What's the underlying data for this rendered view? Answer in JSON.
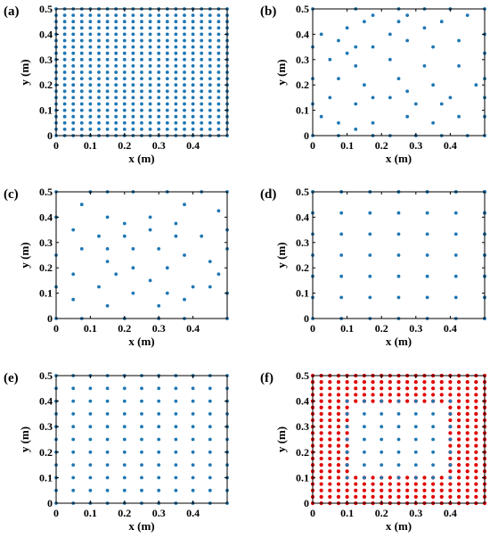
{
  "colors": {
    "blue": "#1f77b4",
    "red": "#e00000",
    "axis": "#000000"
  },
  "chart_data": [
    {
      "id": "a",
      "label": "(a)",
      "type": "scatter",
      "xlabel": "x (m)",
      "ylabel": "y (m)",
      "xlim": [
        0,
        0.5
      ],
      "ylim": [
        0,
        0.5
      ],
      "xticks": [
        0,
        0.1,
        0.2,
        0.3,
        0.4
      ],
      "yticks": [
        0,
        0.1,
        0.2,
        0.3,
        0.4,
        0.5
      ],
      "xtick_labels": [
        "0",
        "0.1",
        "0.2",
        "0.3",
        "0.4"
      ],
      "ytick_labels": [
        "0",
        "0.1",
        "0.2",
        "0.3",
        "0.4",
        "0.5"
      ],
      "grid": false,
      "series": [
        {
          "color": "#1f77b4",
          "grid_points": {
            "start": 0,
            "stop": 0.5,
            "step": 0.025
          }
        }
      ]
    },
    {
      "id": "b",
      "label": "(b)",
      "type": "scatter",
      "xlabel": "x (m)",
      "ylabel": "y (m)",
      "xlim": [
        0,
        0.5
      ],
      "ylim": [
        0,
        0.5
      ],
      "xticks": [
        0,
        0.1,
        0.2,
        0.3,
        0.4
      ],
      "yticks": [
        0,
        0.1,
        0.2,
        0.3,
        0.4,
        0.5
      ],
      "xtick_labels": [
        "0",
        "0.1",
        "0.2",
        "0.3",
        "0.4"
      ],
      "ytick_labels": [
        "0",
        "0.1",
        "0.2",
        "0.3",
        "0.4",
        "0.5"
      ],
      "grid": false,
      "series": [
        {
          "color": "#1f77b4",
          "points": [
            [
              0,
              0
            ],
            [
              0.075,
              0
            ],
            [
              0.175,
              0
            ],
            [
              0.225,
              0
            ],
            [
              0.3,
              0
            ],
            [
              0.375,
              0
            ],
            [
              0.45,
              0
            ],
            [
              0.5,
              0
            ],
            [
              0.025,
              0.075
            ],
            [
              0.075,
              0.05
            ],
            [
              0.125,
              0.025
            ],
            [
              0.175,
              0.05
            ],
            [
              0.275,
              0.075
            ],
            [
              0.35,
              0.05
            ],
            [
              0.425,
              0.075
            ],
            [
              0.05,
              0.15
            ],
            [
              0.125,
              0.125
            ],
            [
              0.175,
              0.15
            ],
            [
              0.225,
              0.15
            ],
            [
              0.3,
              0.125
            ],
            [
              0.375,
              0.125
            ],
            [
              0,
              0.225
            ],
            [
              0.075,
              0.225
            ],
            [
              0.15,
              0.2
            ],
            [
              0.275,
              0.175
            ],
            [
              0.35,
              0.2
            ],
            [
              0.4,
              0.15
            ],
            [
              0.5,
              0.225
            ],
            [
              0.05,
              0.3
            ],
            [
              0.125,
              0.275
            ],
            [
              0.225,
              0.3
            ],
            [
              0.25,
              0.225
            ],
            [
              0.325,
              0.275
            ],
            [
              0.425,
              0.275
            ],
            [
              0.475,
              0.2
            ],
            [
              0.1,
              0.325
            ],
            [
              0.175,
              0.35
            ],
            [
              0.275,
              0.375
            ],
            [
              0.35,
              0.35
            ],
            [
              0.425,
              0.375
            ],
            [
              0.5,
              0.325
            ],
            [
              0.025,
              0.4
            ],
            [
              0.075,
              0.375
            ],
            [
              0.125,
              0.35
            ],
            [
              0.225,
              0.4
            ],
            [
              0.325,
              0.425
            ],
            [
              0.1,
              0.425
            ],
            [
              0.15,
              0.45
            ],
            [
              0.25,
              0.45
            ],
            [
              0.375,
              0.45
            ],
            [
              0.175,
              0.475
            ],
            [
              0.275,
              0.475
            ],
            [
              0.45,
              0.475
            ],
            [
              0,
              0.5
            ],
            [
              0.125,
              0.5
            ],
            [
              0.25,
              0.5
            ],
            [
              0.325,
              0.5
            ],
            [
              0.4,
              0.5
            ],
            [
              0.5,
              0.5
            ],
            [
              0,
              0.125
            ],
            [
              0,
              0.35
            ],
            [
              0.5,
              0.075
            ],
            [
              0.5,
              0.4
            ],
            [
              0.5,
              0.15
            ]
          ]
        }
      ]
    },
    {
      "id": "c",
      "label": "(c)",
      "type": "scatter",
      "xlabel": "x (m)",
      "ylabel": "y (m)",
      "xlim": [
        0,
        0.5
      ],
      "ylim": [
        0,
        0.5
      ],
      "xticks": [
        0,
        0.1,
        0.2,
        0.3,
        0.4
      ],
      "yticks": [
        0,
        0.1,
        0.2,
        0.3,
        0.4,
        0.5
      ],
      "xtick_labels": [
        "0",
        "0.1",
        "0.2",
        "0.3",
        "0.4"
      ],
      "ytick_labels": [
        "0",
        "0.1",
        "0.2",
        "0.3",
        "0.4",
        "0.5"
      ],
      "grid": false,
      "series": [
        {
          "color": "#1f77b4",
          "points": [
            [
              0,
              0
            ],
            [
              0.075,
              0
            ],
            [
              0.2,
              0
            ],
            [
              0.3,
              0
            ],
            [
              0.375,
              0
            ],
            [
              0.5,
              0
            ],
            [
              0.05,
              0.075
            ],
            [
              0.15,
              0.05
            ],
            [
              0.225,
              0.1
            ],
            [
              0.3,
              0.05
            ],
            [
              0.375,
              0.075
            ],
            [
              0.45,
              0.125
            ],
            [
              0,
              0.125
            ],
            [
              0.125,
              0.125
            ],
            [
              0.175,
              0.175
            ],
            [
              0.275,
              0.15
            ],
            [
              0.325,
              0.1
            ],
            [
              0.4,
              0.125
            ],
            [
              0.05,
              0.175
            ],
            [
              0.15,
              0.225
            ],
            [
              0.225,
              0.2
            ],
            [
              0.325,
              0.2
            ],
            [
              0.45,
              0.225
            ],
            [
              0.475,
              0.175
            ],
            [
              0,
              0.25
            ],
            [
              0.075,
              0.275
            ],
            [
              0.15,
              0.275
            ],
            [
              0.225,
              0.275
            ],
            [
              0.3,
              0.275
            ],
            [
              0.375,
              0.25
            ],
            [
              0.05,
              0.35
            ],
            [
              0.125,
              0.325
            ],
            [
              0.2,
              0.325
            ],
            [
              0.275,
              0.35
            ],
            [
              0.35,
              0.325
            ],
            [
              0.425,
              0.325
            ],
            [
              0,
              0.4
            ],
            [
              0.075,
              0.45
            ],
            [
              0.15,
              0.4
            ],
            [
              0.2,
              0.375
            ],
            [
              0.275,
              0.4
            ],
            [
              0.35,
              0.375
            ],
            [
              0.475,
              0.425
            ],
            [
              0,
              0.5
            ],
            [
              0.1,
              0.5
            ],
            [
              0.15,
              0.5
            ],
            [
              0.225,
              0.5
            ],
            [
              0.325,
              0.5
            ],
            [
              0.375,
              0.45
            ],
            [
              0.425,
              0.5
            ],
            [
              0.5,
              0.5
            ],
            [
              0.5,
              0.1
            ],
            [
              0.5,
              0.35
            ],
            [
              0.5,
              0.275
            ]
          ]
        }
      ]
    },
    {
      "id": "d",
      "label": "(d)",
      "type": "scatter",
      "xlabel": "x (m)",
      "ylabel": "y (m)",
      "xlim": [
        0,
        0.5
      ],
      "ylim": [
        0,
        0.5
      ],
      "xticks": [
        0,
        0.1,
        0.2,
        0.3,
        0.4
      ],
      "yticks": [
        0,
        0.1,
        0.2,
        0.3,
        0.4,
        0.5
      ],
      "xtick_labels": [
        "0",
        "0.1",
        "0.2",
        "0.3",
        "0.4"
      ],
      "ytick_labels": [
        "0",
        "0.1",
        "0.2",
        "0.3",
        "0.4",
        "0.5"
      ],
      "grid": false,
      "series": [
        {
          "color": "#1f77b4",
          "grid_points": {
            "start": 0,
            "stop": 0.5,
            "step": 0.0833
          }
        }
      ]
    },
    {
      "id": "e",
      "label": "(e)",
      "type": "scatter",
      "xlabel": "x (m)",
      "ylabel": "y (m)",
      "xlim": [
        0,
        0.5
      ],
      "ylim": [
        0,
        0.5
      ],
      "xticks": [
        0,
        0.1,
        0.2,
        0.3,
        0.4
      ],
      "yticks": [
        0,
        0.1,
        0.2,
        0.3,
        0.4,
        0.5
      ],
      "xtick_labels": [
        "0",
        "0.1",
        "0.2",
        "0.3",
        "0.4"
      ],
      "ytick_labels": [
        "0",
        "0.1",
        "0.2",
        "0.3",
        "0.4",
        "0.5"
      ],
      "grid": false,
      "series": [
        {
          "color": "#1f77b4",
          "grid_points": {
            "start": 0,
            "stop": 0.5,
            "step": 0.05
          }
        }
      ]
    },
    {
      "id": "f",
      "label": "(f)",
      "type": "scatter",
      "xlabel": "x (m)",
      "ylabel": "y (m)",
      "xlim": [
        0,
        0.5
      ],
      "ylim": [
        0,
        0.5
      ],
      "xticks": [
        0,
        0.1,
        0.2,
        0.3,
        0.4
      ],
      "yticks": [
        0,
        0.1,
        0.2,
        0.3,
        0.4,
        0.5
      ],
      "xtick_labels": [
        "0",
        "0.1",
        "0.2",
        "0.3",
        "0.4"
      ],
      "ytick_labels": [
        "0",
        "0.1",
        "0.2",
        "0.3",
        "0.4",
        "0.5"
      ],
      "grid": false,
      "series": [
        {
          "color": "#e00000",
          "grid_points": {
            "start": 0,
            "stop": 0.5,
            "step": 0.025
          },
          "exclude_rect": {
            "x": [
              0.1,
              0.4
            ],
            "y": [
              0.1,
              0.4
            ]
          }
        },
        {
          "color": "#1f77b4",
          "grid_points": {
            "start": 0.1,
            "stop": 0.4,
            "step": 0.05
          }
        }
      ]
    }
  ]
}
